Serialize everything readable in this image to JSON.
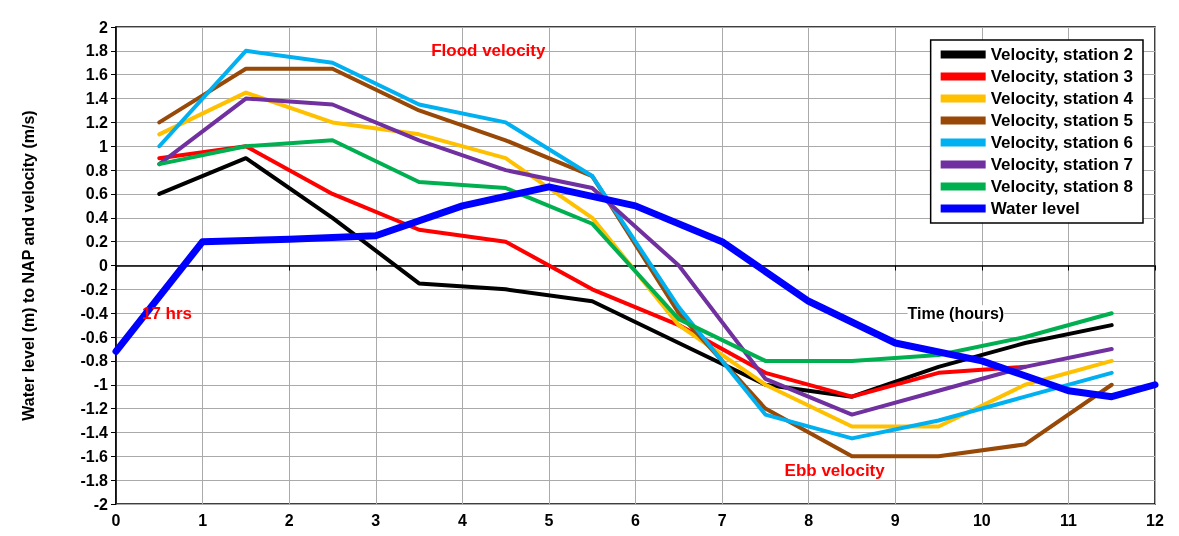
{
  "chart_data": {
    "type": "line",
    "xlabel": "Time (hours)",
    "ylabel": "Water level (m) to NAP and velocity (m/s)",
    "annotations": [
      "Flood velocity",
      "17 hrs",
      "Ebb velocity"
    ],
    "xlim": [
      0,
      12
    ],
    "xticks": [
      0,
      1,
      2,
      3,
      4,
      5,
      6,
      7,
      8,
      9,
      10,
      11,
      12
    ],
    "ylim": [
      -2,
      2
    ],
    "yticks": [
      -2,
      -1.8,
      -1.6,
      -1.4,
      -1.2,
      -1,
      -0.8,
      -0.6,
      -0.4,
      -0.2,
      0,
      0.2,
      0.4,
      0.6,
      0.8,
      1,
      1.2,
      1.4,
      1.6,
      1.8,
      2
    ],
    "grid": true,
    "legend": "top right",
    "line_style": "solid",
    "marker": "none",
    "x": [
      0.5,
      1.5,
      2.5,
      3.5,
      4.5,
      5.5,
      6.5,
      7.5,
      8.5,
      9.5,
      10.5,
      11.5
    ],
    "series": [
      {
        "name": "Velocity, station 2",
        "color": "#000000",
        "values": [
          0.6,
          0.9,
          0.4,
          -0.15,
          -0.2,
          -0.3,
          -0.65,
          -1.0,
          -1.1,
          -0.85,
          -0.65,
          -0.5
        ]
      },
      {
        "name": "Velocity, station 3",
        "color": "#ff0000",
        "values": [
          0.9,
          1.0,
          0.6,
          0.3,
          0.2,
          -0.2,
          -0.5,
          -0.9,
          -1.1,
          -0.9,
          -0.85,
          null
        ]
      },
      {
        "name": "Velocity, station 4",
        "color": "#ffc000",
        "values": [
          1.1,
          1.45,
          1.2,
          1.1,
          0.9,
          0.4,
          -0.5,
          -1.0,
          -1.35,
          -1.35,
          -1.0,
          -0.8
        ]
      },
      {
        "name": "Velocity, station 5",
        "color": "#984807",
        "values": [
          1.2,
          1.65,
          1.65,
          1.3,
          1.05,
          0.75,
          -0.4,
          -1.2,
          -1.6,
          -1.6,
          -1.5,
          -1.0
        ]
      },
      {
        "name": "Velocity, station 6",
        "color": "#00b0f0",
        "values": [
          1.0,
          1.8,
          1.7,
          1.35,
          1.2,
          0.75,
          -0.35,
          -1.25,
          -1.45,
          -1.3,
          -1.1,
          -0.9
        ]
      },
      {
        "name": "Velocity, station 7",
        "color": "#7030a0",
        "values": [
          0.85,
          1.4,
          1.35,
          1.05,
          0.8,
          0.65,
          0.0,
          -0.95,
          -1.25,
          -1.05,
          -0.85,
          -0.7
        ]
      },
      {
        "name": "Velocity, station 8",
        "color": "#00b050",
        "values": [
          0.85,
          1.0,
          1.05,
          0.7,
          0.65,
          0.35,
          -0.45,
          -0.8,
          -0.8,
          -0.75,
          -0.6,
          -0.4
        ]
      },
      {
        "name": "Water level",
        "color": "#0000ff",
        "x": [
          0,
          1,
          2,
          3,
          4,
          5,
          6,
          7,
          8,
          9,
          10,
          11,
          11.5,
          12
        ],
        "values": [
          -0.72,
          0.2,
          0.22,
          0.25,
          0.5,
          0.66,
          0.5,
          0.2,
          -0.3,
          -0.65,
          -0.8,
          -1.05,
          -1.1,
          -1.0
        ]
      }
    ]
  }
}
